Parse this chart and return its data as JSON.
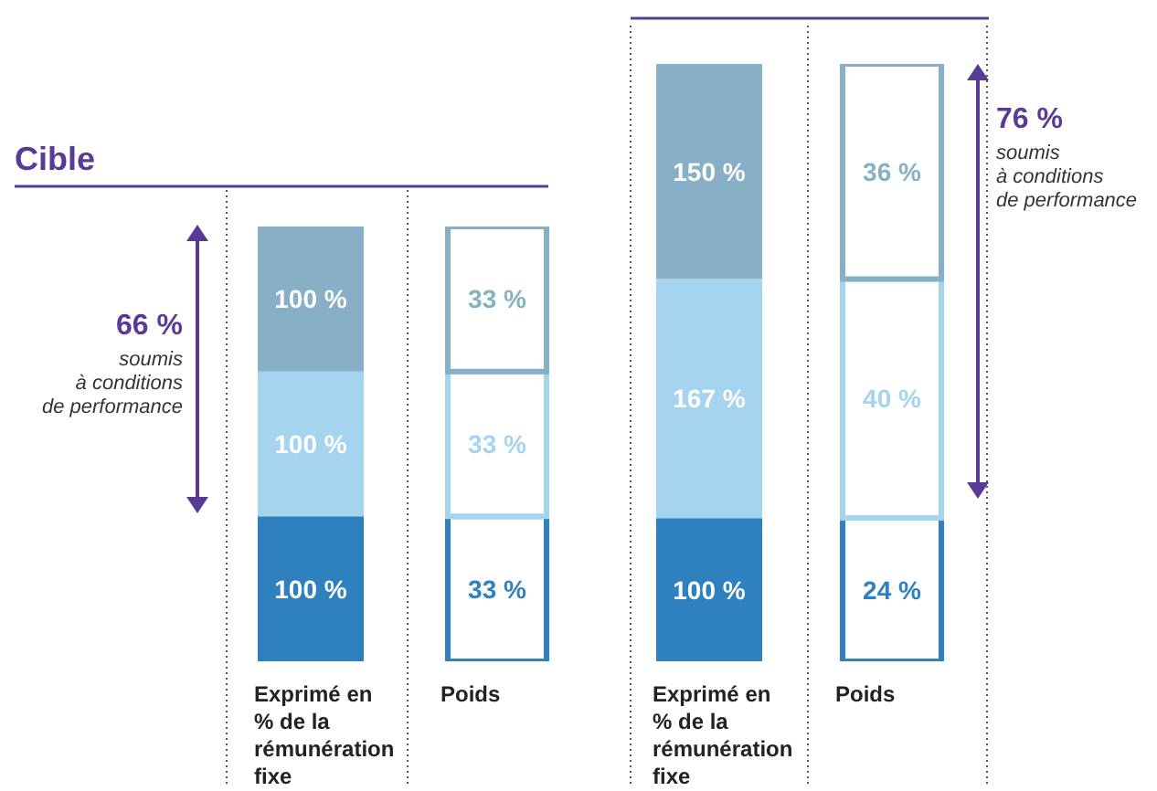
{
  "chart_data": [
    {
      "type": "bar",
      "stacked": true,
      "subtitle": "Cible",
      "categories": [
        "Exprimé en % de la rémunération fixe"
      ],
      "tick_labels": "x",
      "series": [
        {
          "color": "#2e80bf",
          "values": [
            100
          ],
          "value_labels": [
            "100 %"
          ]
        },
        {
          "color": "#a6d3ee",
          "values": [
            100
          ],
          "value_labels": [
            "100 %"
          ]
        },
        {
          "color": "#87afc5",
          "values": [
            100
          ],
          "value_labels": [
            "100 %"
          ]
        }
      ],
      "annotations": [
        "66 %",
        "soumis\nà conditions\nde performance"
      ]
    },
    {
      "type": "bar",
      "stacked": true,
      "categories": [
        "Poids"
      ],
      "tick_labels": "x",
      "series": [
        {
          "color": "#2e80bf",
          "values": [
            33
          ],
          "value_labels": [
            "33 %"
          ]
        },
        {
          "color": "#a6d3ee",
          "values": [
            33
          ],
          "value_labels": [
            "33 %"
          ]
        },
        {
          "color": "#87afc5",
          "values": [
            33
          ],
          "value_labels": [
            "33 %"
          ]
        }
      ]
    },
    {
      "type": "bar",
      "stacked": true,
      "categories": [
        "Exprimé en % de la rémunération fixe"
      ],
      "tick_labels": "x",
      "series": [
        {
          "color": "#2e80bf",
          "values": [
            100
          ],
          "value_labels": [
            "100 %"
          ]
        },
        {
          "color": "#a6d3ee",
          "values": [
            167
          ],
          "value_labels": [
            "167 %"
          ]
        },
        {
          "color": "#87afc5",
          "values": [
            150
          ],
          "value_labels": [
            "150 %"
          ]
        }
      ],
      "annotations": [
        "76 %",
        "soumis\nà conditions\nde performance"
      ]
    },
    {
      "type": "bar",
      "stacked": true,
      "categories": [
        "Poids"
      ],
      "tick_labels": "x",
      "series": [
        {
          "color": "#2e80bf",
          "values": [
            24
          ],
          "value_labels": [
            "24 %"
          ]
        },
        {
          "color": "#a6d3ee",
          "values": [
            40
          ],
          "value_labels": [
            "40 %"
          ]
        },
        {
          "color": "#87afc5",
          "values": [
            36
          ],
          "value_labels": [
            "36 %"
          ]
        }
      ]
    }
  ]
}
